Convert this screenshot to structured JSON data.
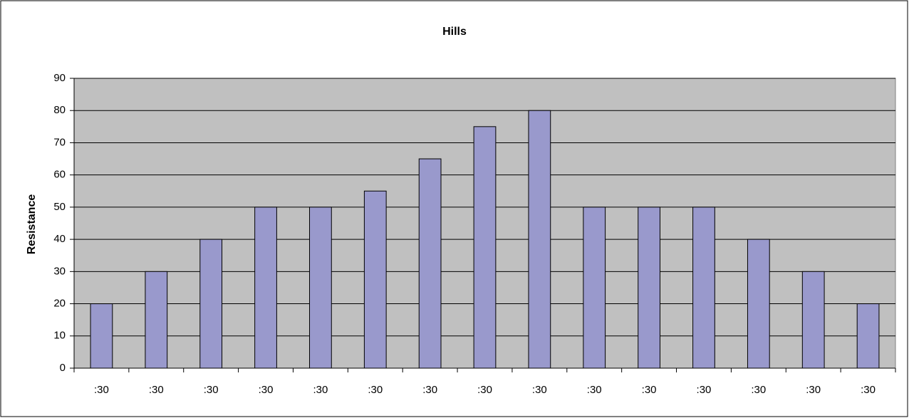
{
  "chart_data": {
    "type": "bar",
    "title": "Hills",
    "y_label": "Resistance",
    "categories": [
      ":30",
      ":30",
      ":30",
      ":30",
      ":30",
      ":30",
      ":30",
      ":30",
      ":30",
      ":30",
      ":30",
      ":30",
      ":30",
      ":30",
      ":30"
    ],
    "values": [
      20,
      30,
      40,
      50,
      50,
      55,
      65,
      75,
      80,
      50,
      50,
      50,
      40,
      30,
      20
    ],
    "color": "#9999cc",
    "ylim": [
      0,
      90
    ],
    "yticks": [
      0,
      10,
      20,
      30,
      40,
      50,
      60,
      70,
      80,
      90
    ],
    "grid": true
  }
}
